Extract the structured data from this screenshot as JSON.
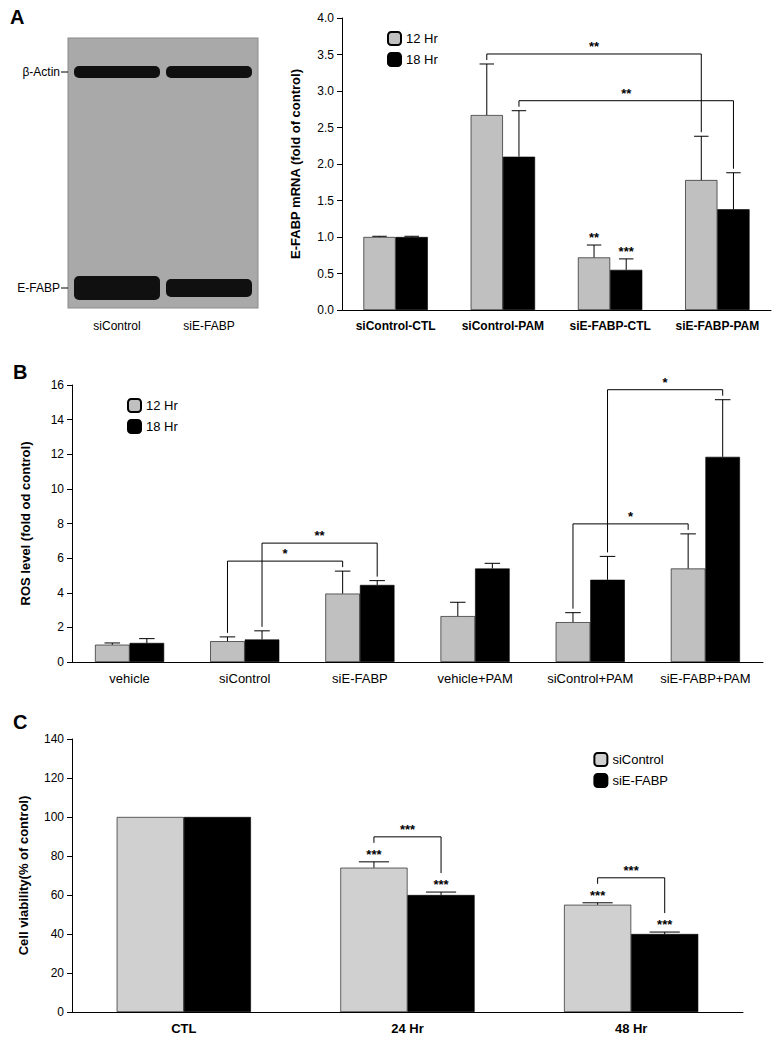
{
  "blot": {
    "panel": "A",
    "bands": [
      "β-Actin",
      "E-FABP"
    ],
    "lanes": [
      "siControl",
      "siE-FABP"
    ]
  },
  "chart_data": [
    {
      "type": "bar",
      "ylabel": "E-FABP mRNA (fold of control)",
      "categories": [
        "siControl-CTL",
        "siControl-PAM",
        "siE-FABP-CTL",
        "siE-FABP-PAM"
      ],
      "series": [
        {
          "name": "12 Hr",
          "color": "#c0c0c0",
          "values": [
            1.0,
            2.67,
            0.72,
            1.78
          ],
          "errors": [
            0.01,
            0.7,
            0.17,
            0.6
          ],
          "stars": [
            null,
            null,
            "**",
            null
          ]
        },
        {
          "name": "18 Hr",
          "color": "#000000",
          "values": [
            1.0,
            2.1,
            0.55,
            1.38
          ],
          "errors": [
            0.01,
            0.63,
            0.15,
            0.5
          ],
          "stars": [
            null,
            null,
            "***",
            null
          ]
        }
      ],
      "brackets": [
        {
          "from": {
            "category": "siControl-PAM",
            "series": "12 Hr"
          },
          "to": {
            "category": "siE-FABP-PAM",
            "series": "12 Hr"
          },
          "label": "**"
        },
        {
          "from": {
            "category": "siControl-PAM",
            "series": "18 Hr"
          },
          "to": {
            "category": "siE-FABP-PAM",
            "series": "18 Hr"
          },
          "label": "**"
        }
      ],
      "ylim": [
        0,
        4
      ],
      "yticks": [
        {
          "value": 0,
          "label": "0.0"
        },
        {
          "value": 0.5,
          "label": "0.5"
        },
        {
          "value": 1,
          "label": "1.0"
        },
        {
          "value": 1.5,
          "label": "1.5"
        },
        {
          "value": 2,
          "label": "2.0"
        },
        {
          "value": 2.5,
          "label": "2.5"
        },
        {
          "value": 3,
          "label": "3.0"
        },
        {
          "value": 3.5,
          "label": "3.5"
        },
        {
          "value": 4,
          "label": "4.0"
        }
      ],
      "legend": "upper left",
      "grid": false
    },
    {
      "type": "bar",
      "title": "B",
      "ylabel": "ROS level (fold od control)",
      "categories": [
        "vehicle",
        "siControl",
        "siE-FABP",
        "vehicle+PAM",
        "siControl+PAM",
        "siE-FABP+PAM"
      ],
      "series": [
        {
          "name": "12 Hr",
          "color": "#c0c0c0",
          "values": [
            1.0,
            1.2,
            3.95,
            2.65,
            2.3,
            5.4
          ],
          "errors": [
            0.1,
            0.25,
            1.3,
            0.8,
            0.55,
            2.0
          ]
        },
        {
          "name": "18 Hr",
          "color": "#000000",
          "values": [
            1.1,
            1.3,
            4.45,
            5.4,
            4.75,
            11.85
          ],
          "errors": [
            0.25,
            0.5,
            0.25,
            0.3,
            1.35,
            3.3
          ]
        }
      ],
      "brackets": [
        {
          "from": {
            "category": "siControl",
            "series": "12 Hr"
          },
          "to": {
            "category": "siE-FABP",
            "series": "12 Hr"
          },
          "label": "*"
        },
        {
          "from": {
            "category": "siControl",
            "series": "18 Hr"
          },
          "to": {
            "category": "siE-FABP",
            "series": "18 Hr"
          },
          "label": "**"
        },
        {
          "from": {
            "category": "siControl+PAM",
            "series": "12 Hr"
          },
          "to": {
            "category": "siE-FABP+PAM",
            "series": "12 Hr"
          },
          "label": "*"
        },
        {
          "from": {
            "category": "siControl+PAM",
            "series": "18 Hr"
          },
          "to": {
            "category": "siE-FABP+PAM",
            "series": "18 Hr"
          },
          "label": "*"
        }
      ],
      "ylim": [
        0,
        16
      ],
      "yticks": [
        0,
        2,
        4,
        6,
        8,
        10,
        12,
        14,
        16
      ],
      "legend": "upper left",
      "grid": false
    },
    {
      "type": "bar",
      "title": "C",
      "ylabel": "Cell viability(% of control)",
      "categories": [
        "CTL",
        "24 Hr",
        "48 Hr"
      ],
      "series": [
        {
          "name": "siControl",
          "color": "#d0d0d0",
          "values": [
            100,
            74,
            55
          ],
          "errors": [
            0,
            3,
            1
          ],
          "stars": [
            null,
            "***",
            "***"
          ]
        },
        {
          "name": "siE-FABP",
          "color": "#000000",
          "values": [
            100,
            60,
            40
          ],
          "errors": [
            0,
            1.5,
            1
          ],
          "stars": [
            null,
            "***",
            "***"
          ]
        }
      ],
      "brackets": [
        {
          "from": {
            "category": "24 Hr",
            "series": "siControl"
          },
          "to": {
            "category": "24 Hr",
            "series": "siE-FABP"
          },
          "label": "***"
        },
        {
          "from": {
            "category": "48 Hr",
            "series": "siControl"
          },
          "to": {
            "category": "48 Hr",
            "series": "siE-FABP"
          },
          "label": "***"
        }
      ],
      "ylim": [
        0,
        140
      ],
      "yticks": [
        0,
        20,
        40,
        60,
        80,
        100,
        120,
        140
      ],
      "legend": "upper right",
      "grid": false
    }
  ]
}
